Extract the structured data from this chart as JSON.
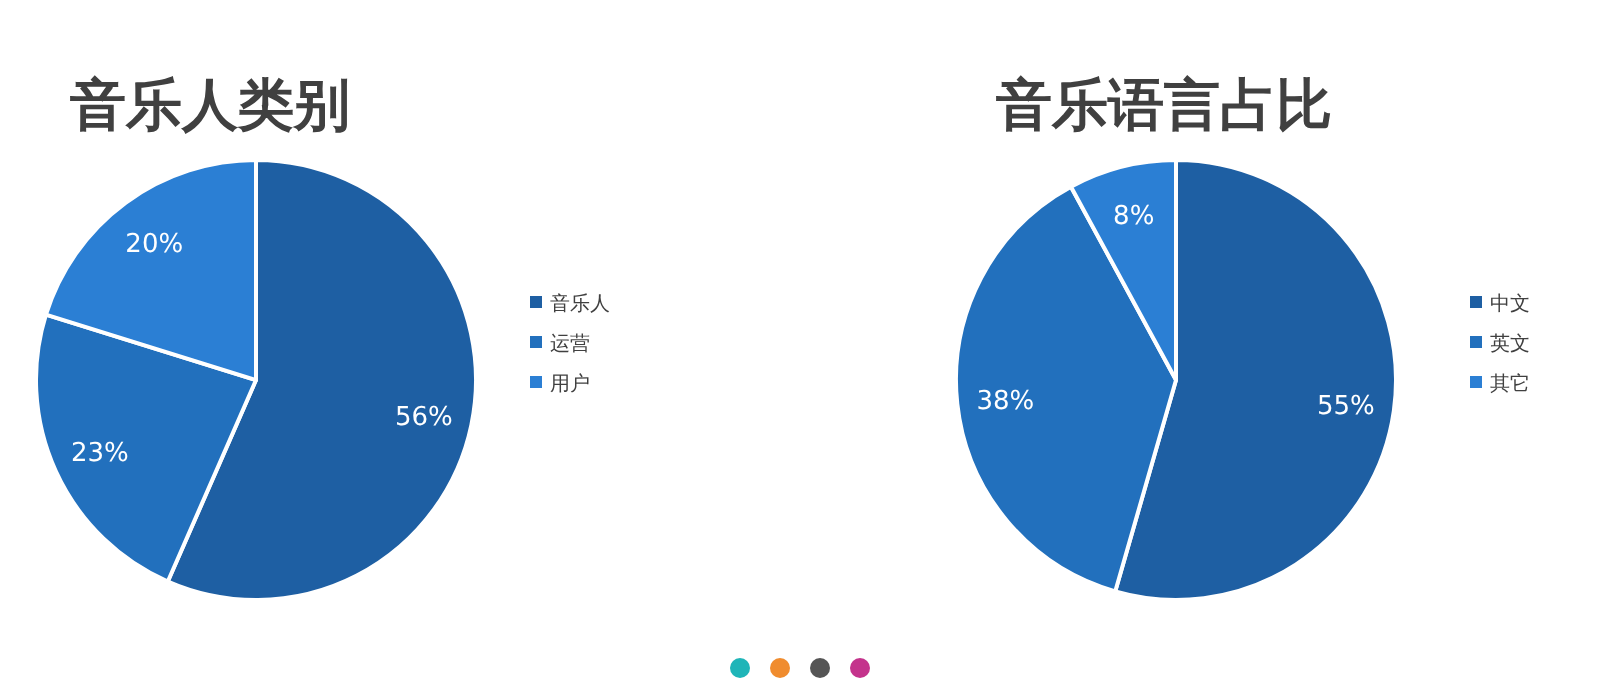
{
  "chart_data": [
    {
      "type": "pie",
      "title": "音乐人类别",
      "categories": [
        "音乐人",
        "运营",
        "用户"
      ],
      "values": [
        56,
        23,
        20
      ],
      "value_labels": [
        "56%",
        "23%",
        "20%"
      ],
      "colors": [
        "#1e5fa3",
        "#2270bd",
        "#2b7fd4"
      ],
      "legend": "right"
    },
    {
      "type": "pie",
      "title": "音乐语言占比",
      "categories": [
        "中文",
        "英文",
        "其它"
      ],
      "values": [
        55,
        38,
        8
      ],
      "value_labels": [
        "55%",
        "38%",
        "8%"
      ],
      "colors": [
        "#1e5fa3",
        "#2270bd",
        "#2b7fd4"
      ],
      "legend": "right"
    }
  ]
}
